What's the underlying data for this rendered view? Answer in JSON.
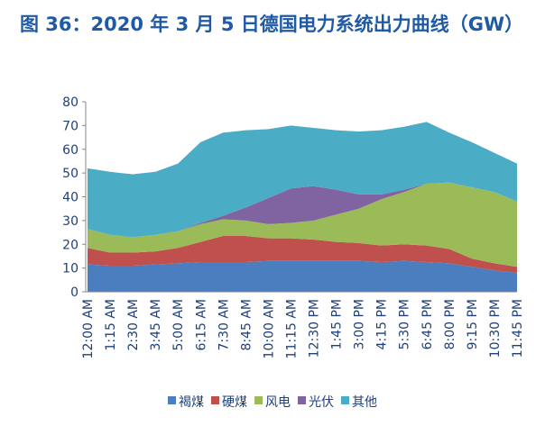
{
  "chart_data": {
    "type": "stacked-area",
    "title": "图 36：2020 年 3 月 5 日德国电力系统出力曲线（GW）",
    "categories": [
      "12:00 AM",
      "1:15 AM",
      "2:30 AM",
      "3:45 AM",
      "5:00 AM",
      "6:15 AM",
      "7:30 AM",
      "8:45 AM",
      "10:00 AM",
      "11:15 AM",
      "12:30 PM",
      "1:45 PM",
      "3:00 PM",
      "4:15 PM",
      "5:30 PM",
      "6:45 PM",
      "8:00 PM",
      "9:15 PM",
      "10:30 PM",
      "11:45 PM"
    ],
    "series": [
      {
        "name": "褐煤",
        "color": "#4a7ebf",
        "values": [
          11.5,
          11,
          11,
          11.5,
          12,
          12.5,
          12.5,
          12.5,
          13,
          13,
          13,
          13,
          13,
          12.5,
          13,
          12.5,
          12,
          10.5,
          9,
          8
        ]
      },
      {
        "name": "硬煤",
        "color": "#c0504d",
        "values": [
          7,
          5.5,
          5.5,
          5.5,
          6.5,
          8.5,
          11,
          11,
          9.5,
          9.5,
          9,
          8,
          7.5,
          7,
          7,
          7,
          6,
          3.5,
          3,
          2.5
        ]
      },
      {
        "name": "风电",
        "color": "#9bbb59",
        "values": [
          8,
          7.5,
          6.5,
          7,
          7,
          7.5,
          7,
          6.5,
          6,
          6.5,
          8,
          11.5,
          14.5,
          19.5,
          22,
          26,
          28,
          30,
          30,
          27.5
        ]
      },
      {
        "name": "光伏",
        "color": "#8064a2",
        "values": [
          0,
          0,
          0,
          0,
          0,
          0.5,
          1.5,
          5.5,
          11,
          14.5,
          14.5,
          10.5,
          6,
          2,
          1,
          0,
          0,
          0,
          0,
          0
        ]
      },
      {
        "name": "其他",
        "color": "#4bacc6",
        "values": [
          25.5,
          26.5,
          26.5,
          26.5,
          28.5,
          34,
          35,
          32.5,
          29,
          26.5,
          24.5,
          25,
          26.5,
          27,
          26.5,
          26,
          21,
          19,
          16.5,
          16
        ]
      }
    ],
    "ylim": [
      0,
      80
    ],
    "yticks": [
      0,
      10,
      20,
      30,
      40,
      50,
      60,
      70,
      80
    ],
    "grid": false,
    "legend": "bottom"
  }
}
